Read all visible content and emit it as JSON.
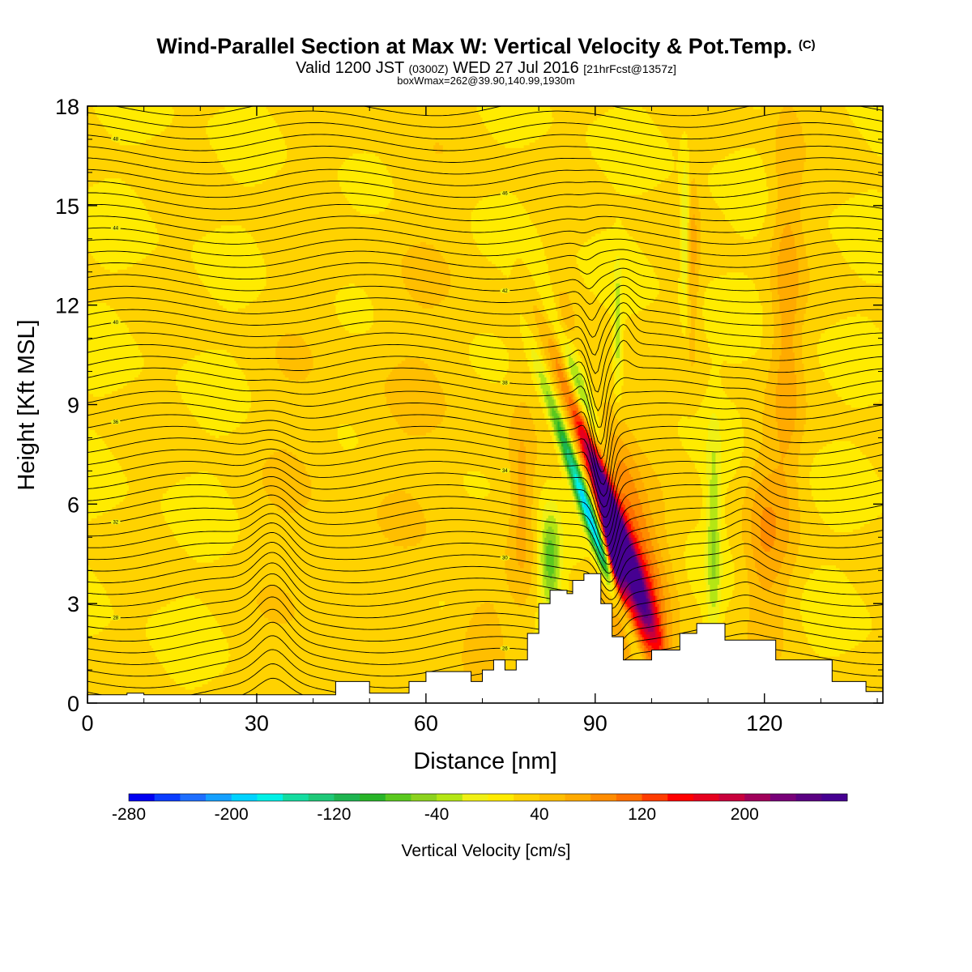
{
  "title": {
    "main": "Wind-Parallel Section at Max W: Vertical Velocity & Pot.Temp.",
    "copyright": "(C)",
    "valid_prefix": "Valid 1200 JST",
    "utc_time": "(0300Z)",
    "date": "WED 27 Jul 2016",
    "forecast": "[21hrFcst@1357z]",
    "box_info": "boxWmax=262@39.90,140.99,1930m"
  },
  "chart_data": {
    "type": "heatmap",
    "xlabel": "Distance [nm]",
    "ylabel": "Height [Kft MSL]",
    "xlim": [
      0,
      141
    ],
    "ylim": [
      0,
      18
    ],
    "x_ticks": [
      "0",
      "30",
      "60",
      "90",
      "120"
    ],
    "x_tick_values": [
      0,
      30,
      60,
      90,
      120
    ],
    "y_ticks": [
      "0",
      "3",
      "6",
      "9",
      "12",
      "15",
      "18"
    ],
    "y_tick_values": [
      0,
      3,
      6,
      9,
      12,
      15,
      18
    ],
    "colorbar": {
      "label": "Vertical Velocity [cm/s]",
      "min": -280,
      "max": 280,
      "step": 20,
      "tick_labels": [
        "-280",
        "-200",
        "-120",
        "-40",
        "40",
        "120",
        "200"
      ],
      "tick_values": [
        -280,
        -200,
        -120,
        -40,
        40,
        120,
        200
      ],
      "colors": [
        "#0000f0",
        "#0a3cff",
        "#1e6eff",
        "#14a0ff",
        "#00d2ff",
        "#00f0e6",
        "#14dca0",
        "#1ec878",
        "#1eb450",
        "#28b428",
        "#5ac81e",
        "#8cd21e",
        "#b4e614",
        "#f0f014",
        "#ffeb00",
        "#ffd200",
        "#ffbe00",
        "#ffaa00",
        "#ff8c00",
        "#ff6e00",
        "#ff3c00",
        "#ff0000",
        "#e6001e",
        "#c8003c",
        "#a0005a",
        "#780078",
        "#5a0082",
        "#460091"
      ]
    },
    "terrain": [
      [
        0,
        0.25
      ],
      [
        7,
        0.25
      ],
      [
        7,
        0.3
      ],
      [
        10,
        0.3
      ],
      [
        10,
        0.25
      ],
      [
        44,
        0.25
      ],
      [
        44,
        0.65
      ],
      [
        50,
        0.65
      ],
      [
        50,
        0.3
      ],
      [
        57,
        0.3
      ],
      [
        57,
        0.65
      ],
      [
        60,
        0.65
      ],
      [
        60,
        0.95
      ],
      [
        68,
        0.95
      ],
      [
        68,
        0.65
      ],
      [
        70,
        0.65
      ],
      [
        70,
        1.0
      ],
      [
        72,
        1.0
      ],
      [
        72,
        1.3
      ],
      [
        74,
        1.3
      ],
      [
        74,
        1.0
      ],
      [
        76,
        1.0
      ],
      [
        76,
        1.3
      ],
      [
        78,
        1.3
      ],
      [
        78,
        2.1
      ],
      [
        80,
        2.1
      ],
      [
        80,
        3.0
      ],
      [
        82,
        3.0
      ],
      [
        82,
        3.4
      ],
      [
        85,
        3.4
      ],
      [
        85,
        3.3
      ],
      [
        86,
        3.3
      ],
      [
        86,
        3.7
      ],
      [
        88,
        3.7
      ],
      [
        88,
        3.9
      ],
      [
        91,
        3.9
      ],
      [
        91,
        3.0
      ],
      [
        93,
        3.0
      ],
      [
        93,
        2.0
      ],
      [
        95,
        2.0
      ],
      [
        95,
        1.3
      ],
      [
        100,
        1.3
      ],
      [
        100,
        1.6
      ],
      [
        105,
        1.6
      ],
      [
        105,
        2.1
      ],
      [
        108,
        2.1
      ],
      [
        108,
        2.4
      ],
      [
        113,
        2.4
      ],
      [
        113,
        1.9
      ],
      [
        122,
        1.9
      ],
      [
        122,
        1.3
      ],
      [
        132,
        1.3
      ],
      [
        132,
        0.65
      ],
      [
        138,
        0.65
      ],
      [
        138,
        0.35
      ],
      [
        141,
        0.35
      ]
    ],
    "w_features": [
      {
        "x": 92.5,
        "y": 6.0,
        "sx": 1.3,
        "sy": 2.6,
        "tilt": -2.0,
        "w": 250
      },
      {
        "x": 93.0,
        "y": 4.6,
        "sx": 0.9,
        "sy": 1.2,
        "tilt": -1.0,
        "w": 240
      },
      {
        "x": 89.5,
        "y": 5.4,
        "sx": 0.9,
        "sy": 2.6,
        "tilt": -2.0,
        "w": -220
      },
      {
        "x": 87.5,
        "y": 9.2,
        "sx": 1.2,
        "sy": 2.2,
        "tilt": -2.0,
        "w": -110
      },
      {
        "x": 82.0,
        "y": 4.3,
        "sx": 1.3,
        "sy": 1.0,
        "tilt": 0.0,
        "w": -100
      },
      {
        "x": 95.5,
        "y": 5.2,
        "sx": 3.0,
        "sy": 2.8,
        "tilt": -1.0,
        "w": 80
      },
      {
        "x": 98.0,
        "y": 3.0,
        "sx": 4.0,
        "sy": 1.6,
        "tilt": 0.0,
        "w": 60
      },
      {
        "x": 106.0,
        "y": 14.0,
        "sx": 0.6,
        "sy": 1.8,
        "tilt": 0.0,
        "w": -70
      },
      {
        "x": 94.0,
        "y": 11.2,
        "sx": 0.5,
        "sy": 1.3,
        "tilt": 0.0,
        "w": -60
      },
      {
        "x": 111.0,
        "y": 5.0,
        "sx": 0.9,
        "sy": 2.3,
        "tilt": 0.0,
        "w": -60
      },
      {
        "x": 107.0,
        "y": 13.5,
        "sx": 1.0,
        "sy": 2.0,
        "tilt": 0.0,
        "w": 45
      },
      {
        "x": 124.0,
        "y": 12.0,
        "sx": 2.0,
        "sy": 5.0,
        "tilt": 0.0,
        "w": 45
      },
      {
        "x": 120.0,
        "y": 5.0,
        "sx": 2.5,
        "sy": 2.0,
        "tilt": 0.0,
        "w": 50
      },
      {
        "x": 77.0,
        "y": 6.0,
        "sx": 1.5,
        "sy": 2.0,
        "tilt": 0.0,
        "w": 40
      },
      {
        "x": 84.0,
        "y": 11.0,
        "sx": 1.5,
        "sy": 1.0,
        "tilt": 0.0,
        "w": 35
      },
      {
        "x": 38.0,
        "y": 5.0,
        "sx": 6.0,
        "sy": 6.0,
        "tilt": 0.0,
        "w": 15
      },
      {
        "x": 60.0,
        "y": 9.0,
        "sx": 8.0,
        "sy": 6.0,
        "tilt": 0.0,
        "w": 15
      },
      {
        "x": 70.0,
        "y": 2.0,
        "sx": 3.0,
        "sy": 1.0,
        "tilt": 0.0,
        "w": 30
      }
    ],
    "isentropes": {
      "theta_min": 24,
      "theta_max": 50,
      "step": 0.5,
      "label_step": 2
    }
  }
}
